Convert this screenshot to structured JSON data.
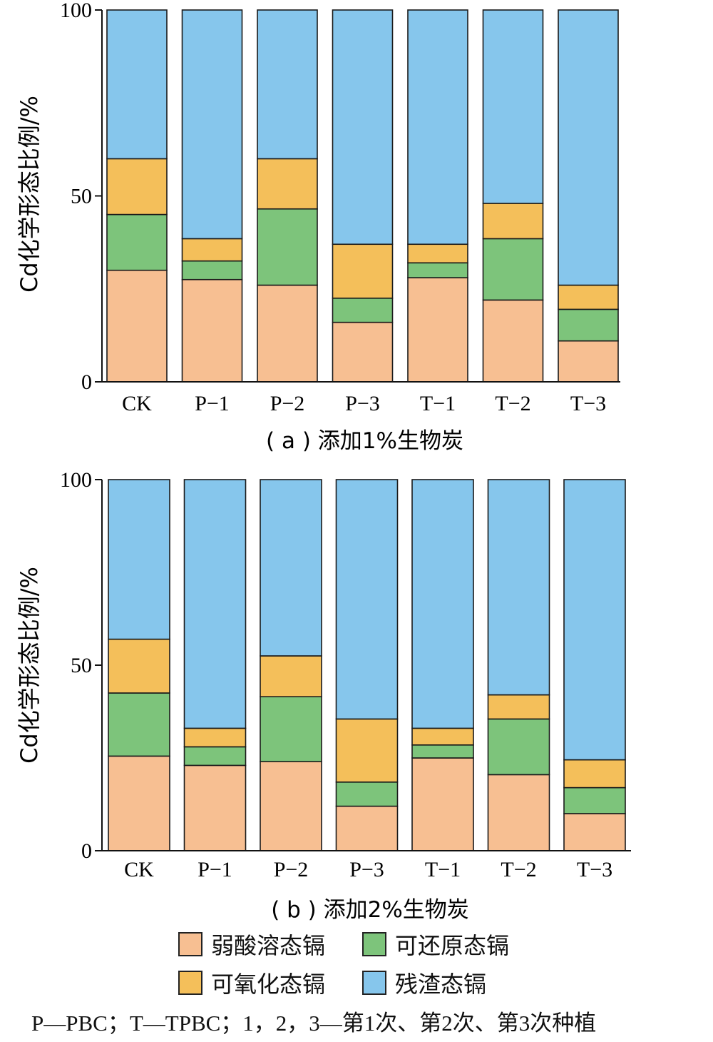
{
  "footnote": "P—PBC；T—TPBC；1，2，3—第1次、第2次、第3次种植",
  "colors": {
    "weak_acid": "#f7bf92",
    "reducible": "#7dc47b",
    "oxidizable": "#f4bf5a",
    "residual": "#86c6ec"
  },
  "legend": [
    {
      "label": "弱酸溶态镉",
      "color": "#f7bf92"
    },
    {
      "label": "可还原态镉",
      "color": "#7dc47b"
    },
    {
      "label": "可氧化态镉",
      "color": "#f4bf5a"
    },
    {
      "label": "残渣态镉",
      "color": "#86c6ec"
    }
  ],
  "chart_data": [
    {
      "type": "bar",
      "stacked": true,
      "title": "( a ) 添加1%生物炭",
      "xlabel": "",
      "ylabel": "Cd化学形态比例/%",
      "ylim": [
        0,
        100
      ],
      "yticks": [
        0,
        50,
        100
      ],
      "categories": [
        "CK",
        "P−1",
        "P−2",
        "P−3",
        "T−1",
        "T−2",
        "T−3"
      ],
      "series": [
        {
          "name": "弱酸溶态镉",
          "values": [
            30,
            27.5,
            26,
            16,
            28,
            22,
            11
          ]
        },
        {
          "name": "可还原态镉",
          "values": [
            15,
            5,
            20.5,
            6.5,
            4,
            16.5,
            8.5
          ]
        },
        {
          "name": "可氧化态镉",
          "values": [
            15,
            6,
            13.5,
            14.5,
            5,
            9.5,
            6.5
          ]
        },
        {
          "name": "残渣态镉",
          "values": [
            40,
            61.5,
            40,
            63,
            63,
            52,
            74
          ]
        }
      ]
    },
    {
      "type": "bar",
      "stacked": true,
      "title": "( b ) 添加2%生物炭",
      "xlabel": "",
      "ylabel": "Cd化学形态比例/%",
      "ylim": [
        0,
        100
      ],
      "yticks": [
        0,
        50,
        100
      ],
      "categories": [
        "CK",
        "P−1",
        "P−2",
        "P−3",
        "T−1",
        "T−2",
        "T−3"
      ],
      "series": [
        {
          "name": "弱酸溶态镉",
          "values": [
            25.5,
            23,
            24,
            12,
            25,
            20.5,
            10
          ]
        },
        {
          "name": "可还原态镉",
          "values": [
            17,
            5,
            17.5,
            6.5,
            3.5,
            15,
            7
          ]
        },
        {
          "name": "可氧化态镉",
          "values": [
            14.5,
            5,
            11,
            17,
            4.5,
            6.5,
            7.5
          ]
        },
        {
          "name": "残渣态镉",
          "values": [
            43,
            67,
            47.5,
            64.5,
            67,
            58,
            75.5
          ]
        }
      ]
    }
  ]
}
